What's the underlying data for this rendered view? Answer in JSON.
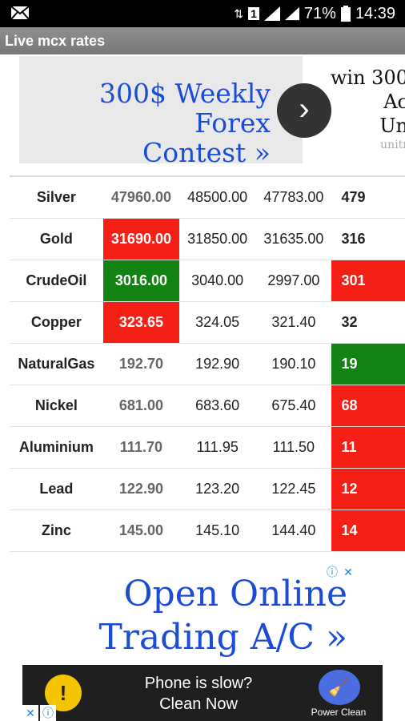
{
  "status_bar": {
    "battery": "71%",
    "time": "14:39",
    "sim": "1"
  },
  "app": {
    "title": "Live mcx rates"
  },
  "ad_top": {
    "line1": "300$ Weekly Forex",
    "line2": "Contest »",
    "right_line1": "win 300",
    "right_line2": "Ac",
    "right_line3": "Un",
    "right_small": "unitr"
  },
  "rates": [
    {
      "name": "Silver",
      "v1": "47960.00",
      "v2": "48500.00",
      "v3": "47783.00",
      "v4": "479",
      "v1_state": "neutral",
      "v4_state": "neutral"
    },
    {
      "name": "Gold",
      "v1": "31690.00",
      "v2": "31850.00",
      "v3": "31635.00",
      "v4": "316",
      "v1_state": "down",
      "v4_state": "neutral"
    },
    {
      "name": "CrudeOil",
      "v1": "3016.00",
      "v2": "3040.00",
      "v3": "2997.00",
      "v4": "301",
      "v1_state": "up",
      "v4_state": "down"
    },
    {
      "name": "Copper",
      "v1": "323.65",
      "v2": "324.05",
      "v3": "321.40",
      "v4": "32",
      "v1_state": "down",
      "v4_state": "neutral"
    },
    {
      "name": "NaturalGas",
      "v1": "192.70",
      "v2": "192.90",
      "v3": "190.10",
      "v4": "19",
      "v1_state": "neutral",
      "v4_state": "up"
    },
    {
      "name": "Nickel",
      "v1": "681.00",
      "v2": "683.60",
      "v3": "675.40",
      "v4": "68",
      "v1_state": "neutral",
      "v4_state": "down"
    },
    {
      "name": "Aluminium",
      "v1": "111.70",
      "v2": "111.95",
      "v3": "111.50",
      "v4": "11",
      "v1_state": "neutral",
      "v4_state": "down"
    },
    {
      "name": "Lead",
      "v1": "122.90",
      "v2": "123.20",
      "v3": "122.45",
      "v4": "12",
      "v1_state": "neutral",
      "v4_state": "down"
    },
    {
      "name": "Zinc",
      "v1": "145.00",
      "v2": "145.10",
      "v3": "144.40",
      "v4": "14",
      "v1_state": "neutral",
      "v4_state": "down"
    }
  ],
  "ad_middle": {
    "line1": "Open Online",
    "line2": "Trading A/C »"
  },
  "ad_bottom": {
    "text_line1": "Phone is slow?",
    "text_line2": "Clean Now",
    "button_label": "Power Clean"
  },
  "colors": {
    "up": "#128212",
    "down": "#f51f16",
    "ad_link": "#1a4cd8"
  },
  "icons": {
    "mail": "mail-icon",
    "signal": "signal-icon",
    "battery": "battery-icon",
    "arrow": "chevron-right-icon",
    "info": "info-icon",
    "close": "close-icon",
    "bulb": "lightbulb-icon",
    "broom": "broom-icon"
  }
}
